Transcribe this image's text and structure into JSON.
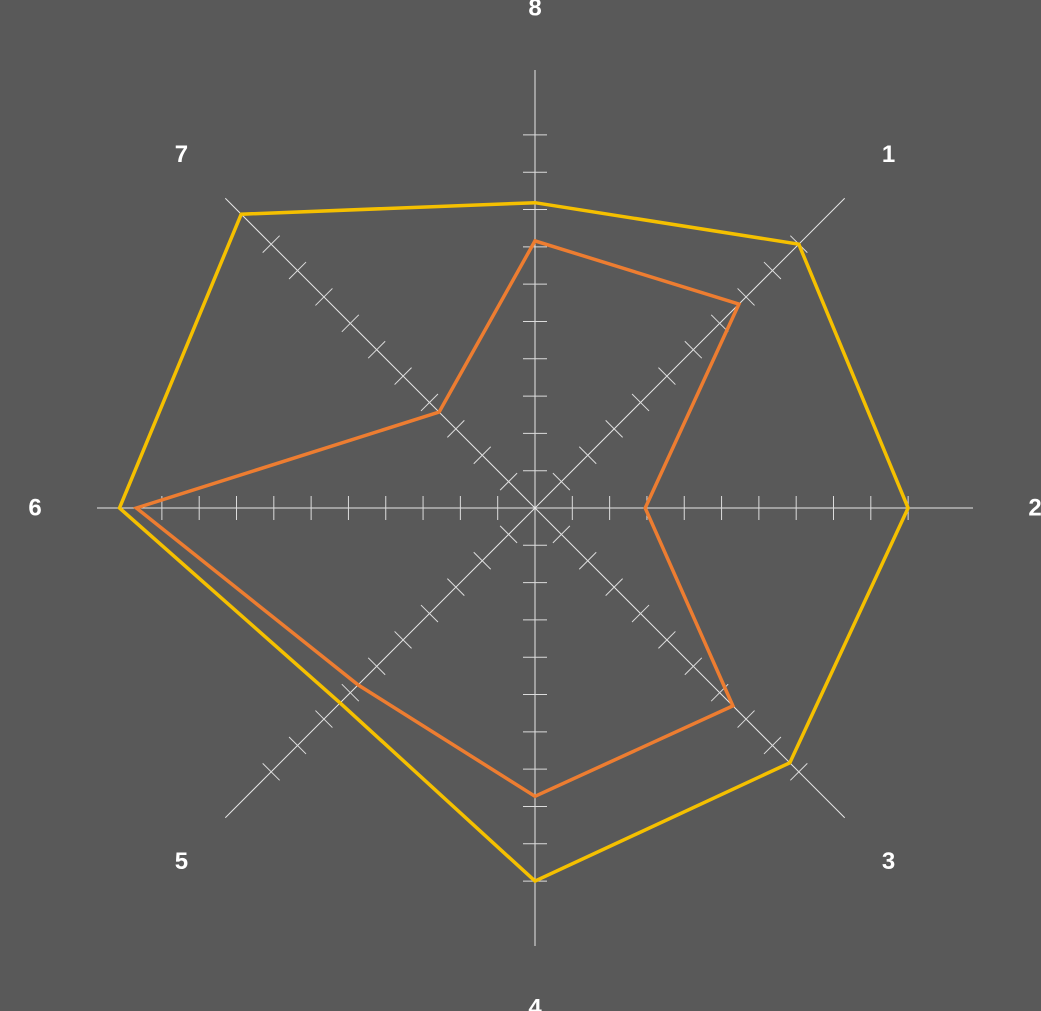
{
  "chart_data": {
    "type": "radar",
    "axes": [
      "1",
      "2",
      "3",
      "4",
      "5",
      "6",
      "7",
      "8"
    ],
    "rmax": 100,
    "tick_step": 10,
    "grid": false,
    "series": [
      {
        "color": "#f5c000",
        "values": [
          88,
          88,
          85,
          88,
          65,
          98,
          98,
          72
        ]
      },
      {
        "color": "#ed7d31",
        "values": [
          68,
          26,
          66,
          68,
          59,
          94,
          32,
          63
        ]
      }
    ]
  }
}
